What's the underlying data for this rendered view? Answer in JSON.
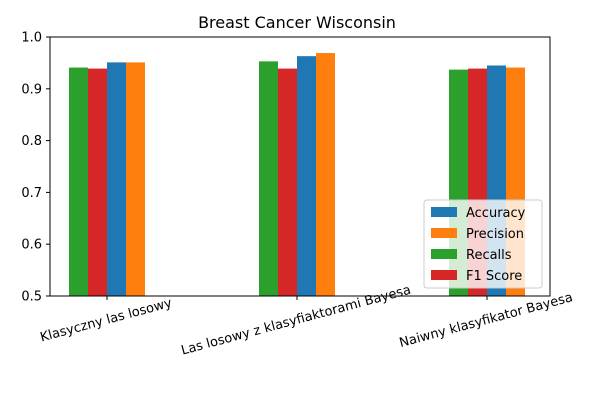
{
  "chart_data": {
    "type": "bar",
    "title": "Breast Cancer Wisconsin",
    "xlabel": "",
    "ylabel": "",
    "categories": [
      "Klasyczny las losowy",
      "Las losowy z klasyfiaktorami Bayesa",
      "Naiwny klasyfikator Bayesa"
    ],
    "series": [
      {
        "name": "Recalls",
        "color": "#2ca02c",
        "values": [
          0.941,
          0.953,
          0.937
        ]
      },
      {
        "name": "F1 Score",
        "color": "#d62728",
        "values": [
          0.939,
          0.939,
          0.939
        ]
      },
      {
        "name": "Accuracy",
        "color": "#1f77b4",
        "values": [
          0.951,
          0.963,
          0.945
        ]
      },
      {
        "name": "Precision",
        "color": "#ff7f0e",
        "values": [
          0.951,
          0.969,
          0.941
        ]
      }
    ],
    "legend_order": [
      "Accuracy",
      "Precision",
      "Recalls",
      "F1 Score"
    ],
    "legend_position": "lower-right",
    "ylim": [
      0.5,
      1.0
    ],
    "yticks": [
      0.5,
      0.6,
      0.7,
      0.8,
      0.9,
      1.0
    ],
    "ytick_labels": [
      "0.5",
      "0.6",
      "0.7",
      "0.8",
      "0.9",
      "1.0"
    ],
    "grid": false,
    "category_label_rotation_deg": 15
  }
}
